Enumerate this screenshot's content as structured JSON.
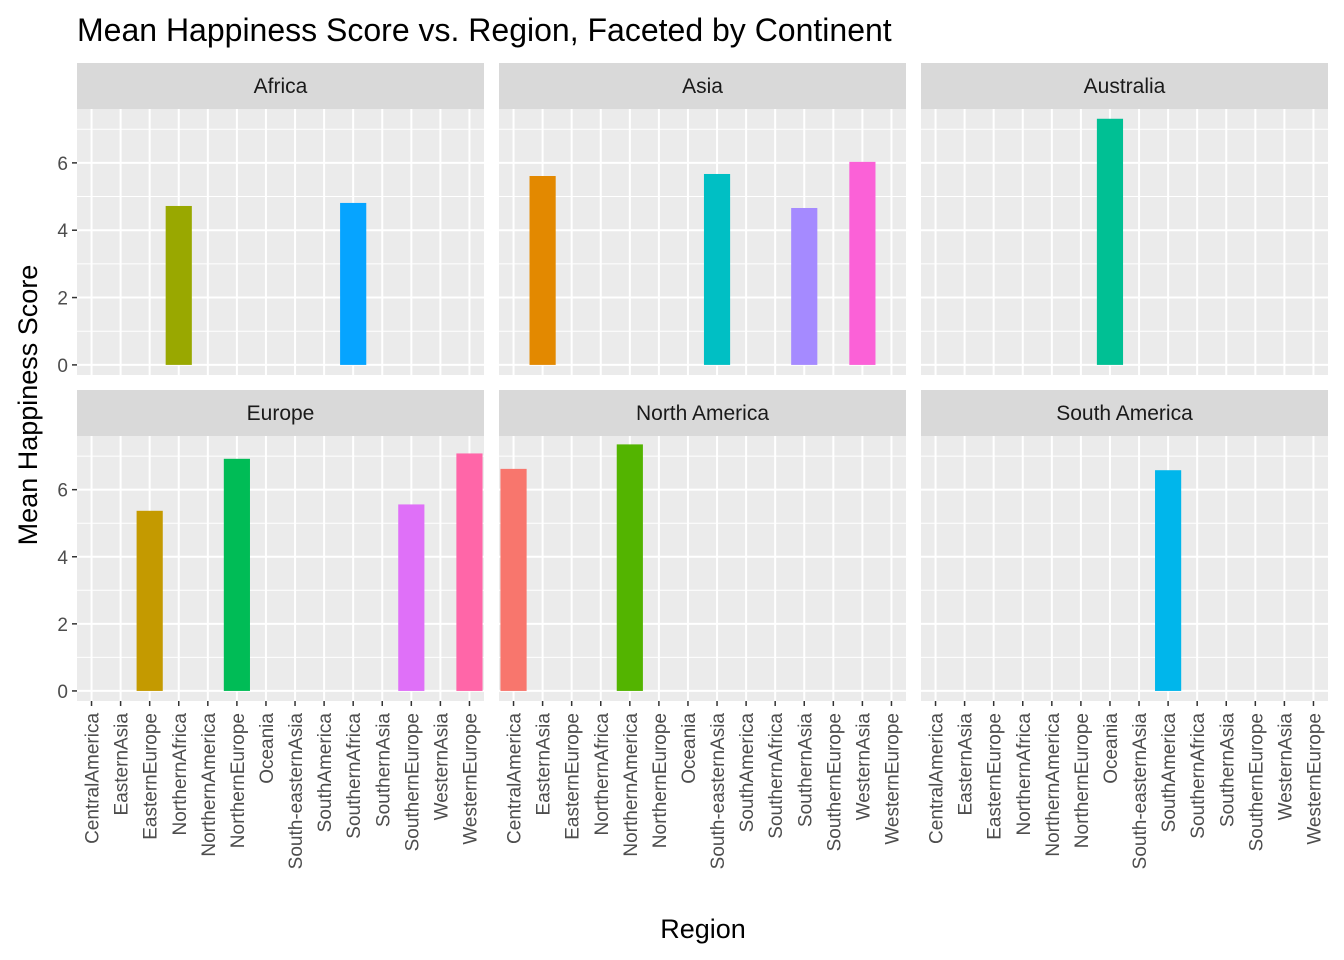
{
  "chart_data": {
    "type": "bar",
    "title": "Mean Happiness Score vs. Region, Faceted by Continent",
    "xlabel": "Region",
    "ylabel": "Mean Happiness Score",
    "categories": [
      "CentralAmerica",
      "EasternAsia",
      "EasternEurope",
      "NorthernAfrica",
      "NorthernAmerica",
      "NorthernEurope",
      "Oceania",
      "South-easternAsia",
      "SouthAmerica",
      "SouthernAfrica",
      "SouthernAsia",
      "SouthernEurope",
      "WesternAsia",
      "WesternEurope"
    ],
    "ylim": [
      -0.3,
      7.6
    ],
    "yticks": [
      0,
      2,
      4,
      6
    ],
    "ytick_labels": [
      "0",
      "2",
      "4",
      "6"
    ],
    "grid": true,
    "legend": "none",
    "region_colors": {
      "CentralAmerica": "#F8766D",
      "EasternAsia": "#E38900",
      "EasternEurope": "#C49A00",
      "NorthernAfrica": "#99A800",
      "NorthernAmerica": "#53B400",
      "NorthernEurope": "#00BC56",
      "Oceania": "#00C094",
      "South-easternAsia": "#00BFC4",
      "SouthAmerica": "#00B6EB",
      "SouthernAfrica": "#06A4FF",
      "SouthernAsia": "#A58AFF",
      "SouthernEurope": "#DF70F8",
      "WesternAsia": "#FB61D7",
      "WesternEurope": "#FF66A8"
    },
    "facets": [
      {
        "name": "Africa",
        "bars": [
          {
            "region": "NorthernAfrica",
            "value": 4.72
          },
          {
            "region": "SouthernAfrica",
            "value": 4.81
          }
        ]
      },
      {
        "name": "Asia",
        "bars": [
          {
            "region": "EasternAsia",
            "value": 5.61
          },
          {
            "region": "South-easternAsia",
            "value": 5.67
          },
          {
            "region": "SouthernAsia",
            "value": 4.66
          },
          {
            "region": "WesternAsia",
            "value": 6.03
          }
        ]
      },
      {
        "name": "Australia",
        "bars": [
          {
            "region": "Oceania",
            "value": 7.31
          }
        ]
      },
      {
        "name": "Europe",
        "bars": [
          {
            "region": "EasternEurope",
            "value": 5.37
          },
          {
            "region": "NorthernEurope",
            "value": 6.92
          },
          {
            "region": "SouthernEurope",
            "value": 5.56
          },
          {
            "region": "WesternEurope",
            "value": 7.08
          }
        ]
      },
      {
        "name": "North America",
        "bars": [
          {
            "region": "CentralAmerica",
            "value": 6.62
          },
          {
            "region": "NorthernAmerica",
            "value": 7.35
          }
        ]
      },
      {
        "name": "South America",
        "bars": [
          {
            "region": "SouthAmerica",
            "value": 6.58
          }
        ]
      }
    ]
  }
}
